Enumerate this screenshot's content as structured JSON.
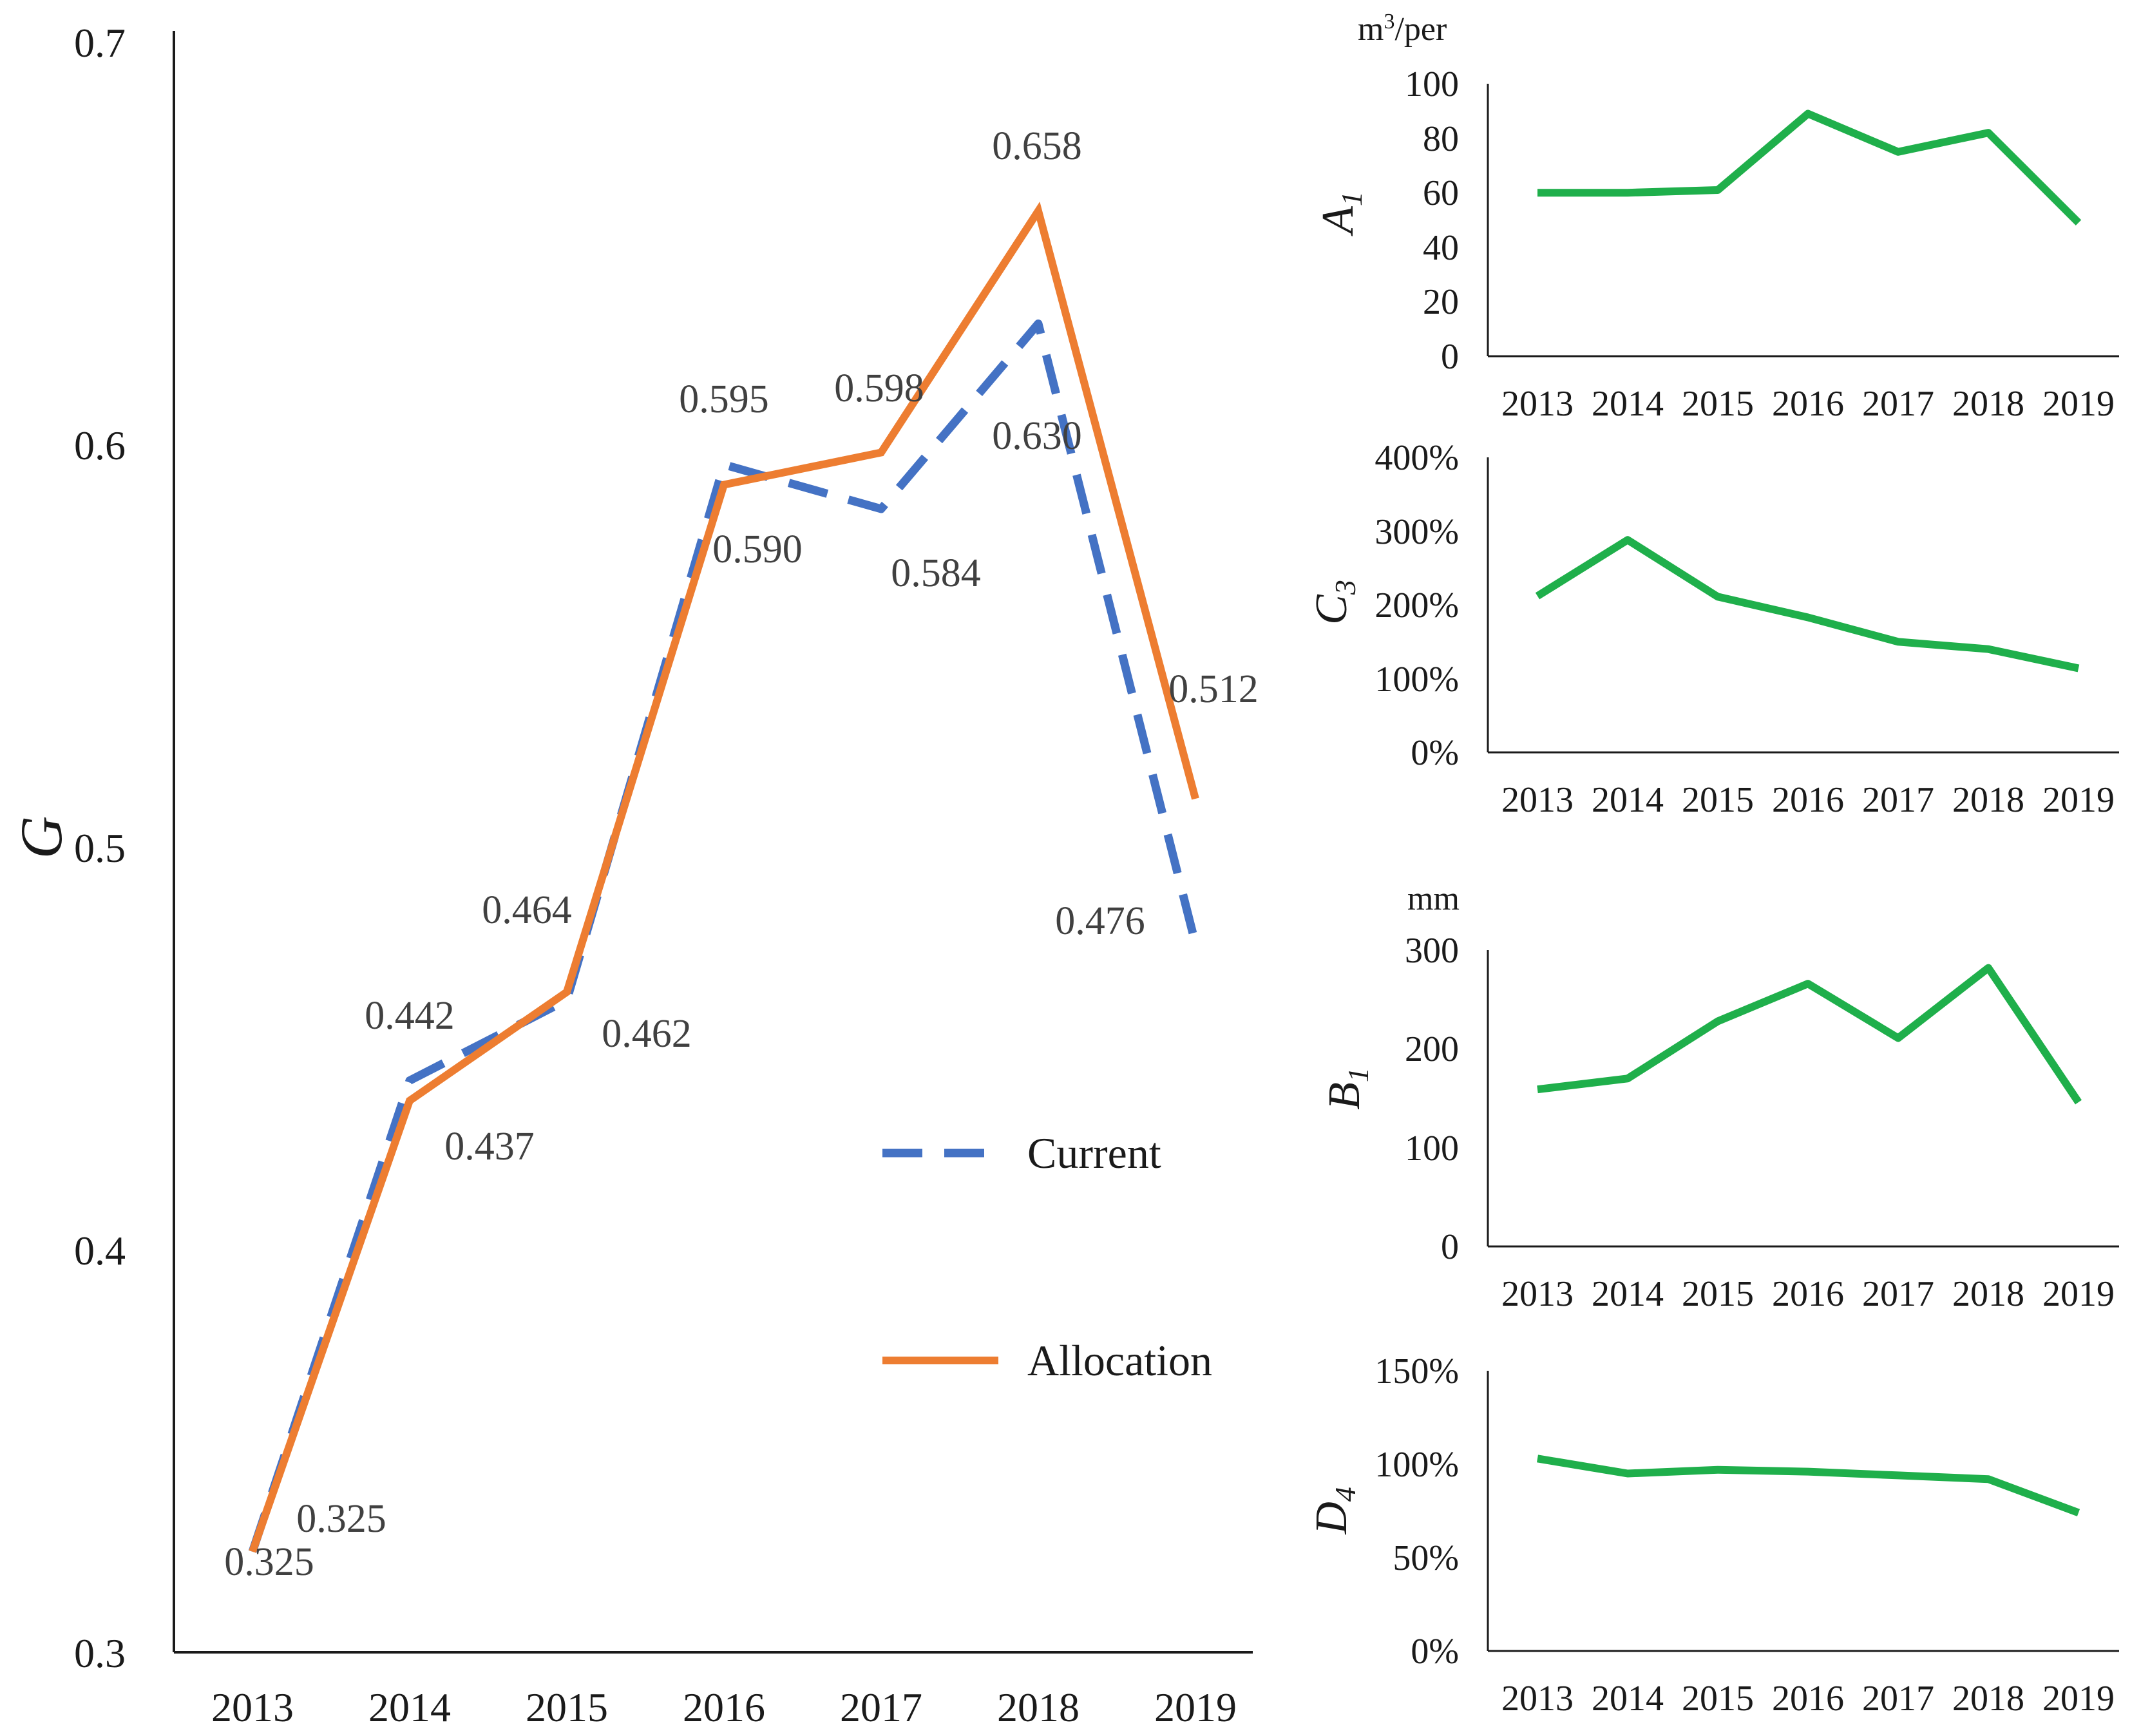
{
  "chart_data": [
    {
      "type": "line",
      "id": "main",
      "ylabel": "G",
      "xlabel": "",
      "categories": [
        "2013",
        "2014",
        "2015",
        "2016",
        "2017",
        "2018",
        "2019"
      ],
      "ylim": [
        0.3,
        0.7
      ],
      "yticks": [
        "0.3",
        "0.4",
        "0.5",
        "0.6",
        "0.7"
      ],
      "series": [
        {
          "name": "Current",
          "color": "#4472C4",
          "style": "dashed",
          "values": [
            0.325,
            0.442,
            0.462,
            0.595,
            0.584,
            0.63,
            0.476
          ],
          "labels": [
            "0.325",
            "0.442",
            "0.462",
            "0.595",
            "0.584",
            "0.630",
            "0.476"
          ]
        },
        {
          "name": "Allocation",
          "color": "#ED7D31",
          "style": "solid",
          "values": [
            0.325,
            0.437,
            0.464,
            0.59,
            0.598,
            0.658,
            0.512
          ],
          "labels": [
            "0.325",
            "0.437",
            "0.464",
            "0.590",
            "0.598",
            "0.658",
            "0.512"
          ]
        }
      ],
      "legend": [
        "Current",
        "Allocation"
      ]
    },
    {
      "type": "line",
      "id": "A1",
      "ylabel": "A1",
      "ylabel_main": "A",
      "ylabel_sub": "1",
      "unit_prefix": "m",
      "unit_sup": "3",
      "unit_suffix": "/per",
      "categories": [
        "2013",
        "2014",
        "2015",
        "2016",
        "2017",
        "2018",
        "2019"
      ],
      "ylim": [
        0,
        100
      ],
      "yticks": [
        "0",
        "20",
        "40",
        "60",
        "80",
        "100"
      ],
      "color": "#1FAF4B",
      "values": [
        60,
        60,
        61,
        89,
        75,
        82,
        49
      ]
    },
    {
      "type": "line",
      "id": "C3",
      "ylabel": "C3",
      "ylabel_main": "C",
      "ylabel_sub": "3",
      "categories": [
        "2013",
        "2014",
        "2015",
        "2016",
        "2017",
        "2018",
        "2019"
      ],
      "ylim": [
        0,
        400
      ],
      "yticks": [
        "0%",
        "100%",
        "200%",
        "300%",
        "400%"
      ],
      "color": "#1FAF4B",
      "values": [
        212,
        288,
        211,
        183,
        150,
        140,
        114
      ]
    },
    {
      "type": "line",
      "id": "B1",
      "ylabel": "B1",
      "ylabel_main": "B",
      "ylabel_sub": "1",
      "unit": "mm",
      "categories": [
        "2013",
        "2014",
        "2015",
        "2016",
        "2017",
        "2018",
        "2019"
      ],
      "ylim": [
        0,
        300
      ],
      "yticks": [
        "0",
        "100",
        "200",
        "300"
      ],
      "color": "#1FAF4B",
      "values": [
        159,
        170,
        228,
        266,
        211,
        282,
        146
      ]
    },
    {
      "type": "line",
      "id": "D4",
      "ylabel": "D4",
      "ylabel_main": "D",
      "ylabel_sub": "4",
      "categories": [
        "2013",
        "2014",
        "2015",
        "2016",
        "2017",
        "2018",
        "2019"
      ],
      "ylim": [
        0,
        150
      ],
      "yticks": [
        "0%",
        "50%",
        "100%",
        "150%"
      ],
      "color": "#1FAF4B",
      "values": [
        103,
        95,
        97,
        96,
        94,
        92,
        74
      ]
    }
  ]
}
